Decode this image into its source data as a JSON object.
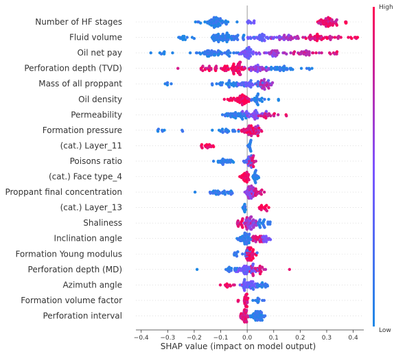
{
  "chart_data": {
    "type": "scatter",
    "subtype": "beeswarm",
    "xlabel": "SHAP value (impact on model output)",
    "xlim": [
      -0.42,
      0.44
    ],
    "xticks": [
      -0.4,
      -0.3,
      -0.2,
      -0.1,
      0.0,
      0.1,
      0.2,
      0.3,
      0.4
    ],
    "xtick_labels": [
      "−0.4",
      "−0.3",
      "−0.2",
      "−0.1",
      "0.0",
      "0.1",
      "0.2",
      "0.3",
      "0.4"
    ],
    "colorbar": {
      "high_label": "High",
      "low_label": "Low",
      "low_color": "#1e88e5",
      "high_color": "#ff0052"
    },
    "grid": false,
    "features": [
      {
        "name": "Number of HF stages",
        "clusters": [
          {
            "center": -0.12,
            "spread": 0.035,
            "n": 55,
            "color": 0.08
          },
          {
            "center": -0.19,
            "spread": 0.008,
            "n": 3,
            "color": 0.05
          },
          {
            "center": -0.08,
            "spread": 0.004,
            "n": 3,
            "color": 0.1
          },
          {
            "center": 0.02,
            "spread": 0.03,
            "n": 8,
            "color": 0.4
          },
          {
            "center": 0.3,
            "spread": 0.035,
            "n": 50,
            "color": 0.88
          },
          {
            "center": 0.37,
            "spread": 0.01,
            "n": 4,
            "color": 0.95
          }
        ]
      },
      {
        "name": "Fluid volume",
        "clusters": [
          {
            "center": -0.25,
            "spread": 0.04,
            "n": 14,
            "color": 0.05
          },
          {
            "center": -0.08,
            "spread": 0.06,
            "n": 70,
            "color": 0.1
          },
          {
            "center": 0.05,
            "spread": 0.05,
            "n": 35,
            "color": 0.4
          },
          {
            "center": 0.15,
            "spread": 0.04,
            "n": 30,
            "color": 0.65
          },
          {
            "center": 0.28,
            "spread": 0.06,
            "n": 45,
            "color": 0.9
          },
          {
            "center": 0.41,
            "spread": 0.02,
            "n": 5,
            "color": 0.98
          }
        ]
      },
      {
        "name": "Oil net pay",
        "clusters": [
          {
            "center": -0.32,
            "spread": 0.035,
            "n": 8,
            "color": 0.05
          },
          {
            "center": -0.12,
            "spread": 0.07,
            "n": 60,
            "color": 0.12
          },
          {
            "center": 0.0,
            "spread": 0.03,
            "n": 40,
            "color": 0.45
          },
          {
            "center": 0.1,
            "spread": 0.04,
            "n": 30,
            "color": 0.6
          },
          {
            "center": 0.22,
            "spread": 0.05,
            "n": 30,
            "color": 0.8
          },
          {
            "center": 0.33,
            "spread": 0.03,
            "n": 6,
            "color": 0.85
          }
        ]
      },
      {
        "name": "Perforation depth (TVD)",
        "clusters": [
          {
            "center": -0.14,
            "spread": 0.05,
            "n": 25,
            "color": 0.9
          },
          {
            "center": -0.04,
            "spread": 0.04,
            "n": 60,
            "color": 0.92
          },
          {
            "center": 0.04,
            "spread": 0.04,
            "n": 35,
            "color": 0.6
          },
          {
            "center": 0.13,
            "spread": 0.05,
            "n": 30,
            "color": 0.1
          },
          {
            "center": 0.24,
            "spread": 0.02,
            "n": 4,
            "color": 0.05
          }
        ]
      },
      {
        "name": "Mass of all proppant",
        "clusters": [
          {
            "center": -0.3,
            "spread": 0.02,
            "n": 5,
            "color": 0.05
          },
          {
            "center": -0.08,
            "spread": 0.06,
            "n": 30,
            "color": 0.1
          },
          {
            "center": 0.0,
            "spread": 0.03,
            "n": 25,
            "color": 0.35
          },
          {
            "center": 0.07,
            "spread": 0.02,
            "n": 30,
            "color": 0.7
          },
          {
            "center": 0.05,
            "spread": 0.03,
            "n": 15,
            "color": 0.25
          }
        ]
      },
      {
        "name": "Oil density",
        "clusters": [
          {
            "center": -0.02,
            "spread": 0.03,
            "n": 45,
            "color": 0.95
          },
          {
            "center": -0.07,
            "spread": 0.015,
            "n": 6,
            "color": 0.95
          },
          {
            "center": 0.05,
            "spread": 0.025,
            "n": 25,
            "color": 0.08
          },
          {
            "center": 0.12,
            "spread": 0.004,
            "n": 2,
            "color": 0.05
          }
        ]
      },
      {
        "name": "Permeability",
        "clusters": [
          {
            "center": -0.04,
            "spread": 0.04,
            "n": 40,
            "color": 0.1
          },
          {
            "center": 0.02,
            "spread": 0.03,
            "n": 35,
            "color": 0.5
          },
          {
            "center": 0.08,
            "spread": 0.03,
            "n": 20,
            "color": 0.85
          },
          {
            "center": 0.15,
            "spread": 0.004,
            "n": 2,
            "color": 0.95
          }
        ]
      },
      {
        "name": "Formation pressure",
        "clusters": [
          {
            "center": -0.34,
            "spread": 0.035,
            "n": 6,
            "color": 0.05
          },
          {
            "center": -0.25,
            "spread": 0.008,
            "n": 2,
            "color": 0.05
          },
          {
            "center": -0.08,
            "spread": 0.04,
            "n": 18,
            "color": 0.1
          },
          {
            "center": 0.01,
            "spread": 0.03,
            "n": 45,
            "color": 0.9
          },
          {
            "center": 0.04,
            "spread": 0.02,
            "n": 15,
            "color": 0.7
          }
        ]
      },
      {
        "name": "(cat.) Layer_11",
        "clusters": [
          {
            "center": -0.15,
            "spread": 0.018,
            "n": 16,
            "color": 0.98
          },
          {
            "center": 0.01,
            "spread": 0.006,
            "n": 14,
            "color": 0.05
          }
        ]
      },
      {
        "name": "Poisons ratio",
        "clusters": [
          {
            "center": -0.08,
            "spread": 0.03,
            "n": 25,
            "color": 0.08
          },
          {
            "center": 0.0,
            "spread": 0.015,
            "n": 20,
            "color": 0.3
          },
          {
            "center": 0.02,
            "spread": 0.012,
            "n": 20,
            "color": 0.85
          }
        ]
      },
      {
        "name": "(cat.) Face type_4",
        "clusters": [
          {
            "center": -0.01,
            "spread": 0.015,
            "n": 28,
            "color": 0.97
          },
          {
            "center": 0.03,
            "spread": 0.01,
            "n": 22,
            "color": 0.05
          }
        ]
      },
      {
        "name": "Proppant final concentration",
        "clusters": [
          {
            "center": -0.2,
            "spread": 0.004,
            "n": 1,
            "color": 0.05
          },
          {
            "center": -0.1,
            "spread": 0.045,
            "n": 30,
            "color": 0.1
          },
          {
            "center": 0.01,
            "spread": 0.015,
            "n": 40,
            "color": 0.6
          },
          {
            "center": 0.04,
            "spread": 0.015,
            "n": 18,
            "color": 0.85
          }
        ]
      },
      {
        "name": "(cat.) Layer_13",
        "clusters": [
          {
            "center": -0.01,
            "spread": 0.004,
            "n": 12,
            "color": 0.05
          },
          {
            "center": 0.06,
            "spread": 0.02,
            "n": 16,
            "color": 0.98
          }
        ]
      },
      {
        "name": "Shaliness",
        "clusters": [
          {
            "center": -0.02,
            "spread": 0.02,
            "n": 25,
            "color": 0.9
          },
          {
            "center": 0.01,
            "spread": 0.02,
            "n": 45,
            "color": 0.6
          },
          {
            "center": 0.06,
            "spread": 0.02,
            "n": 25,
            "color": 0.12
          }
        ]
      },
      {
        "name": "Inclination angle",
        "clusters": [
          {
            "center": -0.01,
            "spread": 0.02,
            "n": 45,
            "color": 0.1
          },
          {
            "center": 0.04,
            "spread": 0.02,
            "n": 25,
            "color": 0.85
          },
          {
            "center": 0.07,
            "spread": 0.015,
            "n": 15,
            "color": 0.5
          }
        ]
      },
      {
        "name": "Formation Young modulus",
        "clusters": [
          {
            "center": -0.04,
            "spread": 0.01,
            "n": 8,
            "color": 0.1
          },
          {
            "center": 0.01,
            "spread": 0.015,
            "n": 40,
            "color": 0.95
          },
          {
            "center": 0.0,
            "spread": 0.012,
            "n": 20,
            "color": 0.2
          }
        ]
      },
      {
        "name": "Perforation depth (MD)",
        "clusters": [
          {
            "center": -0.19,
            "spread": 0.004,
            "n": 1,
            "color": 0.05
          },
          {
            "center": -0.06,
            "spread": 0.03,
            "n": 15,
            "color": 0.1
          },
          {
            "center": 0.0,
            "spread": 0.03,
            "n": 45,
            "color": 0.4
          },
          {
            "center": 0.04,
            "spread": 0.025,
            "n": 25,
            "color": 0.85
          },
          {
            "center": 0.16,
            "spread": 0.004,
            "n": 1,
            "color": 0.95
          }
        ]
      },
      {
        "name": "Azimuth angle",
        "clusters": [
          {
            "center": -0.06,
            "spread": 0.025,
            "n": 12,
            "color": 0.95
          },
          {
            "center": 0.0,
            "spread": 0.025,
            "n": 40,
            "color": 0.4
          },
          {
            "center": 0.05,
            "spread": 0.03,
            "n": 20,
            "color": 0.1
          }
        ]
      },
      {
        "name": "Formation volume factor",
        "clusters": [
          {
            "center": -0.04,
            "spread": 0.008,
            "n": 3,
            "color": 0.95
          },
          {
            "center": -0.005,
            "spread": 0.006,
            "n": 30,
            "color": 0.9
          },
          {
            "center": 0.04,
            "spread": 0.015,
            "n": 12,
            "color": 0.1
          }
        ]
      },
      {
        "name": "Perforation interval",
        "clusters": [
          {
            "center": -0.01,
            "spread": 0.012,
            "n": 35,
            "color": 0.85
          },
          {
            "center": 0.04,
            "spread": 0.025,
            "n": 45,
            "color": 0.1
          }
        ]
      }
    ]
  }
}
